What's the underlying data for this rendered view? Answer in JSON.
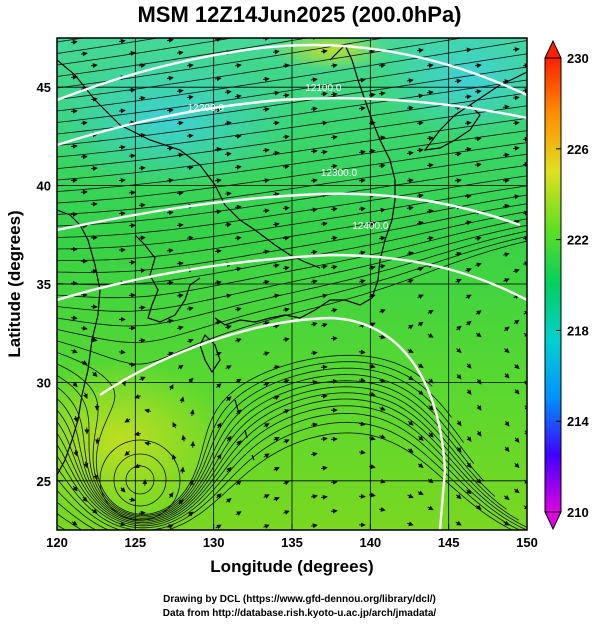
{
  "title": "MSM 12Z14Jun2025 (200.0hPa)",
  "footer": {
    "line1": "Drawing by DCL (https://www.gfd-dennou.org/library/dcl/)",
    "line2": "Data from http://database.rish.kyoto-u.ac.jp/arch/jmadata/"
  },
  "chart_data": {
    "type": "heatmap",
    "xlabel": "Longitude (degrees)",
    "ylabel": "Latitude  (degrees)",
    "xlim": [
      120,
      150
    ],
    "ylim": [
      22.5,
      47.5
    ],
    "xticks": [
      "120",
      "125",
      "130",
      "135",
      "140",
      "145",
      "150"
    ],
    "yticks": [
      "25",
      "30",
      "35",
      "40",
      "45"
    ],
    "colorbar": {
      "min": 210,
      "max": 230,
      "ticks": [
        "210",
        "214",
        "218",
        "222",
        "226",
        "230"
      ],
      "colors": [
        "#e000e0",
        "#4000ff",
        "#0090ff",
        "#00d0d0",
        "#00d060",
        "#60e020",
        "#e0e020",
        "#ff9000",
        "#ff2000"
      ]
    },
    "contours": [
      {
        "label": "12100.0",
        "lon": 137,
        "lat": 44.8
      },
      {
        "label": "12200.0",
        "lon": 129.5,
        "lat": 43.8
      },
      {
        "label": "12300.0",
        "lon": 138,
        "lat": 40.5
      },
      {
        "label": "12400.0",
        "lon": 140,
        "lat": 37.8
      }
    ],
    "grid": true
  }
}
